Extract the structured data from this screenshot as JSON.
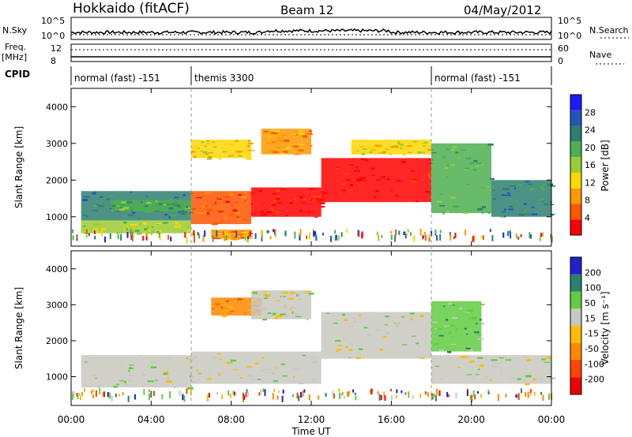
{
  "header": {
    "station": "Hokkaido (fitACF)",
    "beam": "Beam 12",
    "date": "04/May/2012"
  },
  "status_panels": {
    "nsky_label": "N.Sky",
    "nsky_ticks": [
      "10^5",
      "10^0"
    ],
    "nsearch_label": "N.Search",
    "nsearch_ticks": [
      "10^5",
      "10^0"
    ],
    "freq_label": "Freq.",
    "freq_unit": "[MHz]",
    "freq_ticks": [
      "12",
      "8"
    ],
    "nave_label": "Nave",
    "nave_ticks": [
      "60",
      "0"
    ],
    "cpid_label": "CPID",
    "cpid_segments": [
      {
        "label": "normal (fast) -151",
        "start_h": 0,
        "end_h": 6
      },
      {
        "label": "themis 3300",
        "start_h": 6,
        "end_h": 18
      },
      {
        "label": "normal (fast) -151",
        "start_h": 18,
        "end_h": 24
      }
    ]
  },
  "chart_data": [
    {
      "type": "heatmap",
      "name": "power",
      "ylabel": "Slant Range [km]",
      "ylim": [
        200,
        4500
      ],
      "yticks": [
        "4000",
        "3000",
        "2000",
        "1000"
      ],
      "xlim_hours": [
        0,
        24
      ],
      "colorbar_label": "Power [dB]",
      "colorbar_ticks": [
        "28",
        "24",
        "20",
        "16",
        "12",
        "8",
        "4"
      ],
      "colors": [
        "#1a1aff",
        "#2255bb",
        "#2e7f6e",
        "#4caf50",
        "#9acd32",
        "#ffd700",
        "#ff9900",
        "#ff5500",
        "#ff0000"
      ],
      "bands": [
        {
          "x0": 0.5,
          "x1": 6.0,
          "y0": 900,
          "y1": 1700,
          "level": 2
        },
        {
          "x0": 0.5,
          "x1": 6.0,
          "y0": 550,
          "y1": 900,
          "level": 4
        },
        {
          "x0": 2.0,
          "x1": 6.0,
          "y0": 1150,
          "y1": 1450,
          "level": 3
        },
        {
          "x0": 6.0,
          "x1": 9.0,
          "y0": 800,
          "y1": 1700,
          "level": 7
        },
        {
          "x0": 6.0,
          "x1": 9.0,
          "y0": 2600,
          "y1": 3100,
          "level": 5
        },
        {
          "x0": 7.0,
          "x1": 9.0,
          "y0": 400,
          "y1": 650,
          "level": 6
        },
        {
          "x0": 9.0,
          "x1": 12.5,
          "y0": 1000,
          "y1": 1800,
          "level": 8
        },
        {
          "x0": 9.5,
          "x1": 12.0,
          "y0": 2700,
          "y1": 3400,
          "level": 6
        },
        {
          "x0": 12.5,
          "x1": 18.0,
          "y0": 1400,
          "y1": 2600,
          "level": 8
        },
        {
          "x0": 14.0,
          "x1": 18.0,
          "y0": 2700,
          "y1": 3100,
          "level": 5
        },
        {
          "x0": 18.0,
          "x1": 21.0,
          "y0": 1100,
          "y1": 3000,
          "level": 3
        },
        {
          "x0": 21.0,
          "x1": 24.0,
          "y0": 1000,
          "y1": 2000,
          "level": 2
        }
      ]
    },
    {
      "type": "heatmap",
      "name": "velocity",
      "ylabel": "Slant Range [km]",
      "ylim": [
        200,
        4500
      ],
      "yticks": [
        "4000",
        "3000",
        "2000",
        "1000"
      ],
      "xlabel": "Time UT",
      "xticks": [
        "00:00",
        "04:00",
        "08:00",
        "12:00",
        "16:00",
        "20:00",
        "00:00"
      ],
      "xlim_hours": [
        0,
        24
      ],
      "colorbar_label": "Velocity [m s⁻¹]",
      "colorbar_ticks": [
        "200",
        "100",
        "50",
        "15",
        "-15",
        "-50",
        "-100",
        "-200"
      ],
      "colors": [
        "#2020cc",
        "#2e7f6e",
        "#60cc40",
        "#c8c8c0",
        "#ffbb00",
        "#ff8800",
        "#ff4400",
        "#ee0000"
      ],
      "bands": [
        {
          "x0": 0.5,
          "x1": 6.0,
          "y0": 700,
          "y1": 1600,
          "level": 3
        },
        {
          "x0": 6.0,
          "x1": 12.5,
          "y0": 800,
          "y1": 1700,
          "level": 3
        },
        {
          "x0": 7.0,
          "x1": 9.5,
          "y0": 2700,
          "y1": 3200,
          "level": 5
        },
        {
          "x0": 9.0,
          "x1": 12.0,
          "y0": 2600,
          "y1": 3400,
          "level": 3
        },
        {
          "x0": 12.5,
          "x1": 18.0,
          "y0": 1500,
          "y1": 2800,
          "level": 3
        },
        {
          "x0": 18.0,
          "x1": 20.5,
          "y0": 1700,
          "y1": 3100,
          "level": 2
        },
        {
          "x0": 18.0,
          "x1": 24.0,
          "y0": 800,
          "y1": 1600,
          "level": 3
        }
      ]
    }
  ]
}
